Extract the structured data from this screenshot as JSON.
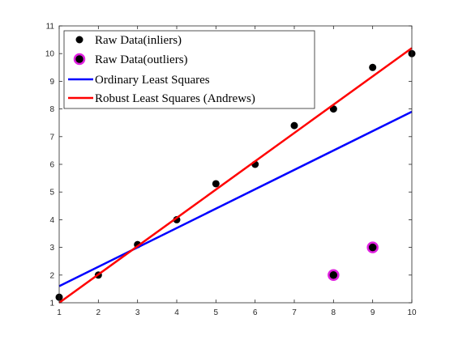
{
  "chart_data": {
    "type": "scatter",
    "title": "",
    "xlabel": "",
    "ylabel": "",
    "xlim": [
      1,
      10
    ],
    "ylim": [
      1,
      11
    ],
    "xticks": [
      1,
      2,
      3,
      4,
      5,
      6,
      7,
      8,
      9,
      10
    ],
    "yticks": [
      1,
      2,
      3,
      4,
      5,
      6,
      7,
      8,
      9,
      10,
      11
    ],
    "grid": false,
    "legend_position": "top-left",
    "series": [
      {
        "name": "Raw Data(inliers)",
        "kind": "scatter",
        "color": "#000000",
        "x": [
          1,
          2,
          3,
          4,
          5,
          6,
          7,
          8,
          9,
          10
        ],
        "y": [
          1.2,
          2.0,
          3.1,
          4.0,
          5.3,
          6.0,
          7.4,
          8.0,
          9.5,
          10.0
        ]
      },
      {
        "name": "Raw Data(outliers)",
        "kind": "scatter",
        "color": "#000000",
        "edge_color": "#e020e0",
        "x": [
          8,
          9
        ],
        "y": [
          2.0,
          3.0
        ]
      },
      {
        "name": "Ordinary Least Squares",
        "kind": "line",
        "color": "#0000ff",
        "x": [
          1,
          10
        ],
        "y": [
          1.6,
          7.9
        ]
      },
      {
        "name": "Robust Least Squares (Andrews)",
        "kind": "line",
        "color": "#ff0000",
        "x": [
          1,
          10
        ],
        "y": [
          1.0,
          10.2
        ]
      }
    ]
  }
}
